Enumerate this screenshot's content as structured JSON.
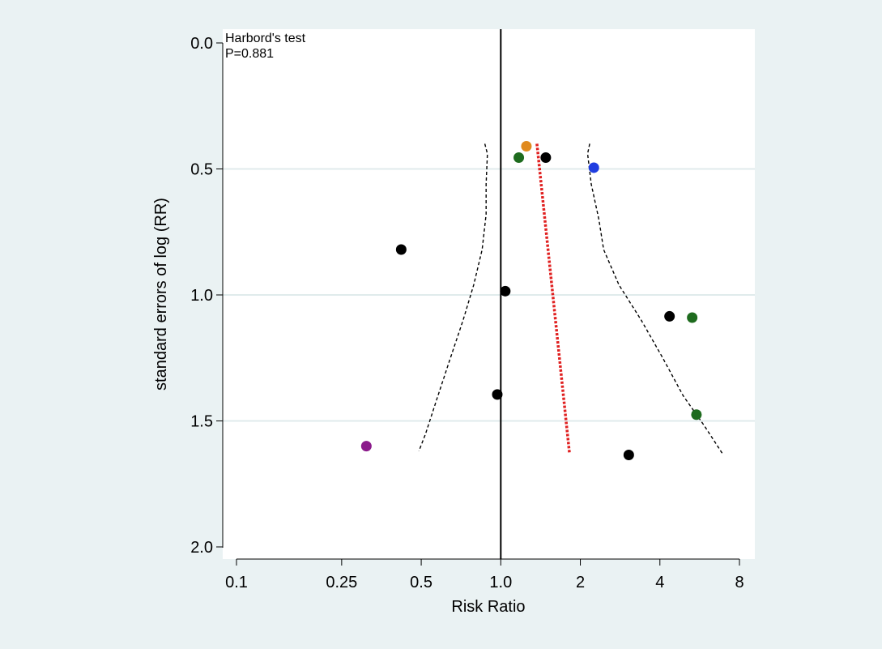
{
  "chart_data": {
    "type": "scatter",
    "title": "",
    "xlabel": "Risk Ratio",
    "ylabel": "standard errors of log (RR)",
    "x_scale": "log",
    "xlim": [
      0.09,
      9.6
    ],
    "ylim": [
      0.0,
      2.0
    ],
    "y_inverted": true,
    "x_ticks": [
      {
        "value": 0.1,
        "label": "0.1"
      },
      {
        "value": 0.25,
        "label": "0.25"
      },
      {
        "value": 0.5,
        "label": "0.5"
      },
      {
        "value": 1.0,
        "label": "1.0"
      },
      {
        "value": 2.0,
        "label": "2"
      },
      {
        "value": 4.0,
        "label": "4"
      },
      {
        "value": 8.0,
        "label": "8"
      }
    ],
    "y_ticks": [
      {
        "value": 0.0,
        "label": "0.0"
      },
      {
        "value": 0.5,
        "label": "0.5"
      },
      {
        "value": 1.0,
        "label": "1.0"
      },
      {
        "value": 1.5,
        "label": "1.5"
      },
      {
        "value": 2.0,
        "label": "2.0"
      }
    ],
    "grid": {
      "horizontal": true,
      "vertical": false
    },
    "annotation": {
      "line1": "Harbord's test",
      "line2": "P=0.881"
    },
    "reference_line": {
      "x": 1.0,
      "color": "#000000"
    },
    "points": [
      {
        "x": 1.25,
        "se": 0.41,
        "color": "#e08a1e"
      },
      {
        "x": 1.17,
        "se": 0.455,
        "color": "#1e6b1e"
      },
      {
        "x": 1.48,
        "se": 0.455,
        "color": "#000000"
      },
      {
        "x": 2.25,
        "se": 0.495,
        "color": "#1f3de0"
      },
      {
        "x": 0.42,
        "se": 0.82,
        "color": "#000000"
      },
      {
        "x": 1.04,
        "se": 0.985,
        "color": "#000000"
      },
      {
        "x": 4.35,
        "se": 1.085,
        "color": "#000000"
      },
      {
        "x": 5.3,
        "se": 1.09,
        "color": "#1e6b1e"
      },
      {
        "x": 0.97,
        "se": 1.395,
        "color": "#000000"
      },
      {
        "x": 5.5,
        "se": 1.475,
        "color": "#1e6b1e"
      },
      {
        "x": 0.31,
        "se": 1.6,
        "color": "#8b1a8b"
      },
      {
        "x": 3.05,
        "se": 1.635,
        "color": "#000000"
      }
    ],
    "regression_line": {
      "color": "#e02020",
      "points": [
        {
          "x": 1.37,
          "se": 0.4
        },
        {
          "x": 1.82,
          "se": 1.63
        }
      ]
    },
    "funnel_lower": [
      {
        "x": 0.87,
        "se": 0.4
      },
      {
        "x": 0.89,
        "se": 0.44
      },
      {
        "x": 0.88,
        "se": 0.56
      },
      {
        "x": 0.88,
        "se": 0.68
      },
      {
        "x": 0.85,
        "se": 0.82
      },
      {
        "x": 0.79,
        "se": 0.96
      },
      {
        "x": 0.72,
        "se": 1.1
      },
      {
        "x": 0.64,
        "se": 1.26
      },
      {
        "x": 0.57,
        "se": 1.42
      },
      {
        "x": 0.52,
        "se": 1.55
      },
      {
        "x": 0.49,
        "se": 1.62
      }
    ],
    "funnel_upper": [
      {
        "x": 2.17,
        "se": 0.4
      },
      {
        "x": 2.13,
        "se": 0.44
      },
      {
        "x": 2.2,
        "se": 0.56
      },
      {
        "x": 2.35,
        "se": 0.7
      },
      {
        "x": 2.45,
        "se": 0.82
      },
      {
        "x": 2.8,
        "se": 0.96
      },
      {
        "x": 3.4,
        "se": 1.1
      },
      {
        "x": 4.1,
        "se": 1.25
      },
      {
        "x": 4.9,
        "se": 1.4
      },
      {
        "x": 5.9,
        "se": 1.52
      },
      {
        "x": 6.9,
        "se": 1.63
      }
    ]
  }
}
